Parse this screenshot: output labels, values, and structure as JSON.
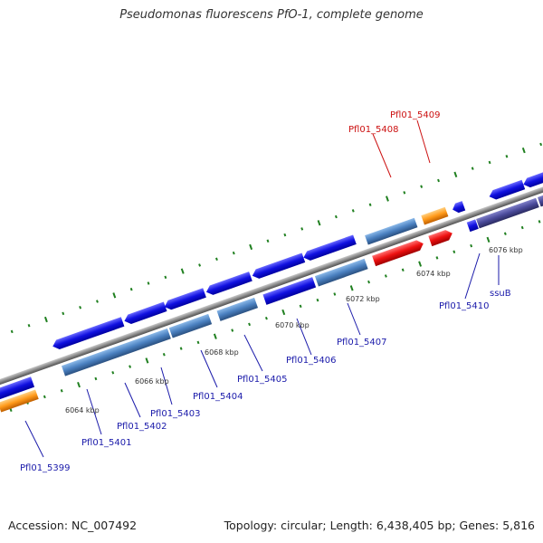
{
  "title": "Pseudomonas fluorescens PfO-1, complete genome",
  "footer": {
    "accession": "Accession: NC_007492",
    "summary": "Topology: circular; Length: 6,438,405 bp; Genes: 5,816"
  },
  "colors": {
    "forward_cds": "#1010e0",
    "reverse_cds": "#4a80c0",
    "rna": "#ee1111",
    "pseudo": "#ff9a1a",
    "ssu": "#4a4a9a",
    "backbone": "#8c8c8c",
    "tick": "#208020",
    "label_blue": "#1a1aaa",
    "label_red": "#cc1111"
  },
  "ticks": [
    "6064 kbp",
    "6066 kbp",
    "6068 kbp",
    "6070 kbp",
    "6072 kbp",
    "6074 kbp",
    "6076 kbp"
  ],
  "gene_labels": [
    "Pfl01_5399",
    "Pfl01_5401",
    "Pfl01_5402",
    "Pfl01_5403",
    "Pfl01_5404",
    "Pfl01_5405",
    "Pfl01_5406",
    "Pfl01_5407",
    "Pfl01_5408",
    "Pfl01_5409",
    "Pfl01_5410",
    "ssuB"
  ]
}
